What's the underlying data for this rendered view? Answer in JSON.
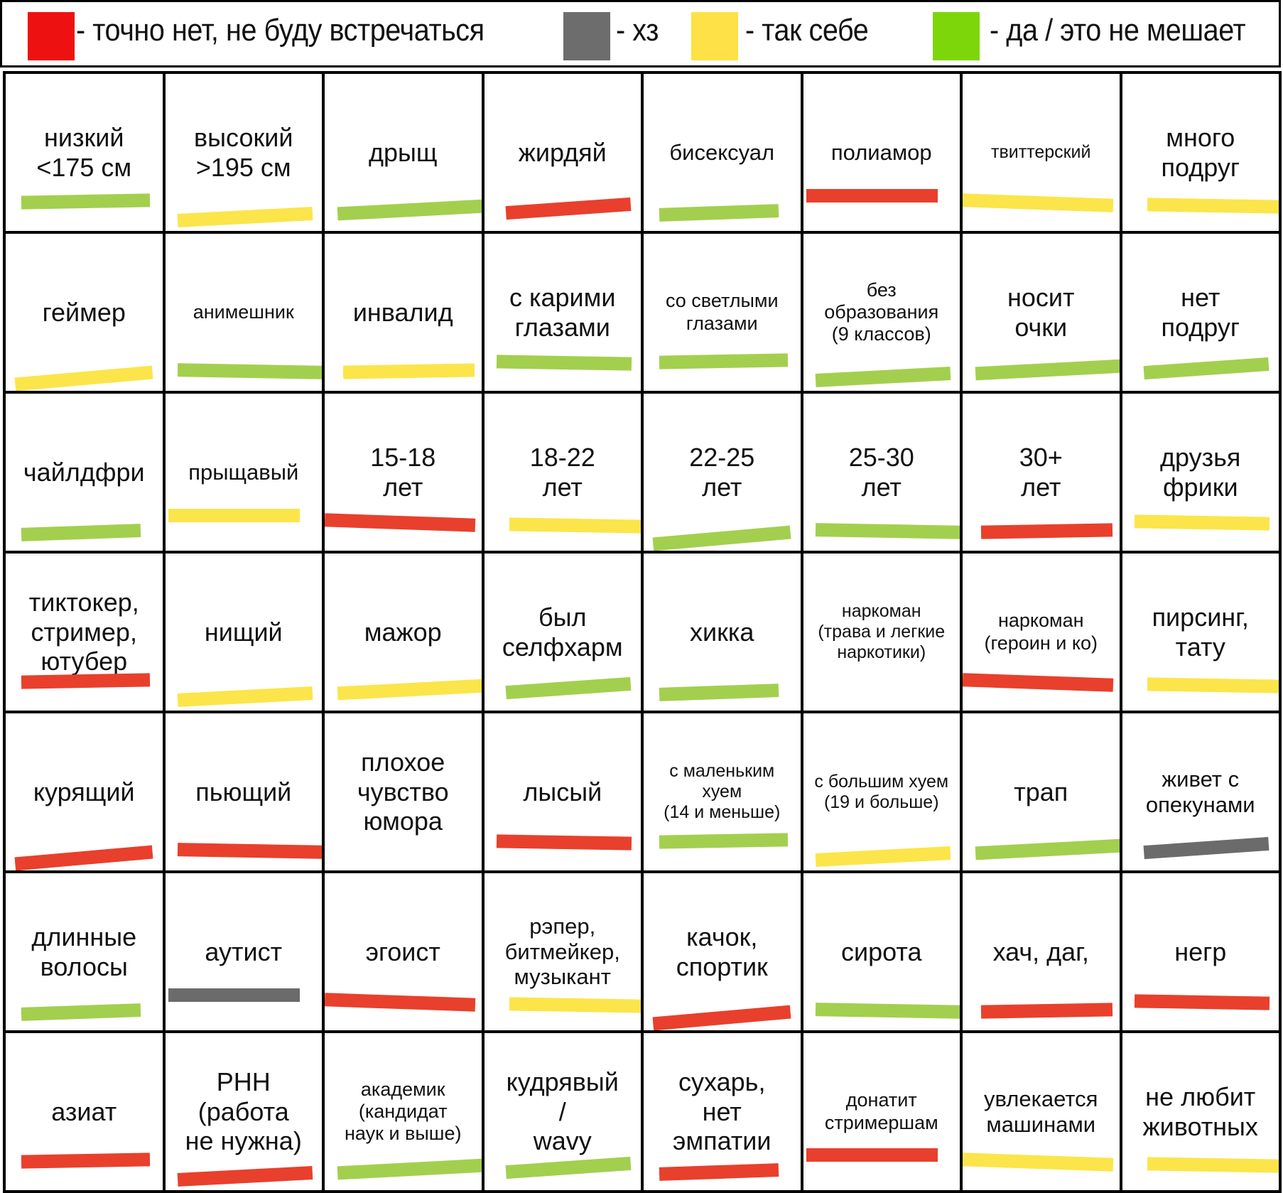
{
  "colors": {
    "red": "#e8402c",
    "gray": "#6b6b6b",
    "yellow": "#fbe54a",
    "green": "#a3cf4f",
    "legend_red": "#ee1111",
    "legend_gray": "#6d6d6d",
    "legend_yellow": "#fde146",
    "legend_green": "#7dd60a"
  },
  "legend": [
    {
      "color": "legend_red",
      "label": "- точно нет, не буду встречаться"
    },
    {
      "color": "legend_gray",
      "label": "- хз"
    },
    {
      "color": "legend_yellow",
      "label": "- так себе"
    },
    {
      "color": "legend_green",
      "label": "- да / это не мешает"
    }
  ],
  "cells": [
    {
      "label": "низкий\n<175 см",
      "mark": "green",
      "size": "fs-l"
    },
    {
      "label": "высокий\n>195 см",
      "mark": "yellow",
      "size": "fs-l"
    },
    {
      "label": "дрыщ",
      "mark": "green",
      "size": "fs-l"
    },
    {
      "label": "жирдяй",
      "mark": "red",
      "size": "fs-l"
    },
    {
      "label": "бисексуал",
      "mark": "green",
      "size": "fs-m"
    },
    {
      "label": "полиамор",
      "mark": "red",
      "size": "fs-m"
    },
    {
      "label": "твиттерский",
      "mark": "yellow",
      "size": "fs-xs"
    },
    {
      "label": "много\nподруг",
      "mark": "yellow",
      "size": "fs-l"
    },
    {
      "label": "геймер",
      "mark": "yellow",
      "size": "fs-l"
    },
    {
      "label": "анимешник",
      "mark": "green",
      "size": "fs-s"
    },
    {
      "label": "инвалид",
      "mark": "yellow",
      "size": "fs-l"
    },
    {
      "label": "с карими\nглазами",
      "mark": "green",
      "size": "fs-l"
    },
    {
      "label": "со светлыми\nглазами",
      "mark": "green",
      "size": "fs-s"
    },
    {
      "label": "без\nобразования\n(9 классов)",
      "mark": "green",
      "size": "fs-s"
    },
    {
      "label": "носит\nочки",
      "mark": "green",
      "size": "fs-l"
    },
    {
      "label": "нет\nподруг",
      "mark": "green",
      "size": "fs-l"
    },
    {
      "label": "чайлдфри",
      "mark": "green",
      "size": "fs-l"
    },
    {
      "label": "прыщавый",
      "mark": "yellow",
      "size": "fs-m"
    },
    {
      "label": "15-18\nлет",
      "mark": "red",
      "size": "fs-l"
    },
    {
      "label": "18-22\nлет",
      "mark": "yellow",
      "size": "fs-l"
    },
    {
      "label": "22-25\nлет",
      "mark": "green",
      "size": "fs-l"
    },
    {
      "label": "25-30\nлет",
      "mark": "green",
      "size": "fs-l"
    },
    {
      "label": "30+\nлет",
      "mark": "red",
      "size": "fs-l"
    },
    {
      "label": "друзья\nфрики",
      "mark": "yellow",
      "size": "fs-l"
    },
    {
      "label": "тиктокер,\nстример,\nютубер",
      "mark": "red",
      "size": "fs-l"
    },
    {
      "label": "нищий",
      "mark": "yellow",
      "size": "fs-l"
    },
    {
      "label": "мажор",
      "mark": "yellow",
      "size": "fs-l"
    },
    {
      "label": "был\nселфхарм",
      "mark": "green",
      "size": "fs-l"
    },
    {
      "label": "хикка",
      "mark": "green",
      "size": "fs-l"
    },
    {
      "label": "наркоман\n(трава и легкие\nнаркотики)",
      "mark": "none",
      "size": "fs-xs"
    },
    {
      "label": "наркоман\n(героин и ко)",
      "mark": "red",
      "size": "fs-s"
    },
    {
      "label": "пирсинг,\nтату",
      "mark": "yellow",
      "size": "fs-l"
    },
    {
      "label": "курящий",
      "mark": "red",
      "size": "fs-l"
    },
    {
      "label": "пьющий",
      "mark": "red",
      "size": "fs-l"
    },
    {
      "label": "плохое\nчувство\nюмора",
      "mark": "none",
      "size": "fs-l"
    },
    {
      "label": "лысый",
      "mark": "red",
      "size": "fs-l"
    },
    {
      "label": "с маленьким\nхуем\n(14 и меньше)",
      "mark": "green",
      "size": "fs-xs"
    },
    {
      "label": "с большим хуем\n(19 и больше)",
      "mark": "yellow",
      "size": "fs-xs"
    },
    {
      "label": "трап",
      "mark": "green",
      "size": "fs-l"
    },
    {
      "label": "живет с\nопекунами",
      "mark": "gray",
      "size": "fs-m"
    },
    {
      "label": "длинные\nволосы",
      "mark": "green",
      "size": "fs-l"
    },
    {
      "label": "аутист",
      "mark": "gray",
      "size": "fs-l"
    },
    {
      "label": "эгоист",
      "mark": "red",
      "size": "fs-l"
    },
    {
      "label": "рэпер,\nбитмейкер,\nмузыкант",
      "mark": "yellow",
      "size": "fs-m"
    },
    {
      "label": "качок,\nспортик",
      "mark": "red",
      "size": "fs-l"
    },
    {
      "label": "сирота",
      "mark": "green",
      "size": "fs-l"
    },
    {
      "label": "хач, даг,",
      "mark": "red",
      "size": "fs-l"
    },
    {
      "label": "негр",
      "mark": "red",
      "size": "fs-l"
    },
    {
      "label": "азиат",
      "mark": "red",
      "size": "fs-l"
    },
    {
      "label": "РНН\n(работа\nне нужна)",
      "mark": "red",
      "size": "fs-l"
    },
    {
      "label": "академик\n(кандидат\nнаук и выше)",
      "mark": "green",
      "size": "fs-s"
    },
    {
      "label": "кудрявый\n/\nwavy",
      "mark": "green",
      "size": "fs-l"
    },
    {
      "label": "сухарь,\nнет\nэмпатии",
      "mark": "red",
      "size": "fs-l"
    },
    {
      "label": "донатит\nстримершам",
      "mark": "red",
      "size": "fs-s"
    },
    {
      "label": "увлекается\nмашинами",
      "mark": "yellow",
      "size": "fs-m"
    },
    {
      "label": "не любит\nживотных",
      "mark": "yellow",
      "size": "fs-l"
    }
  ]
}
